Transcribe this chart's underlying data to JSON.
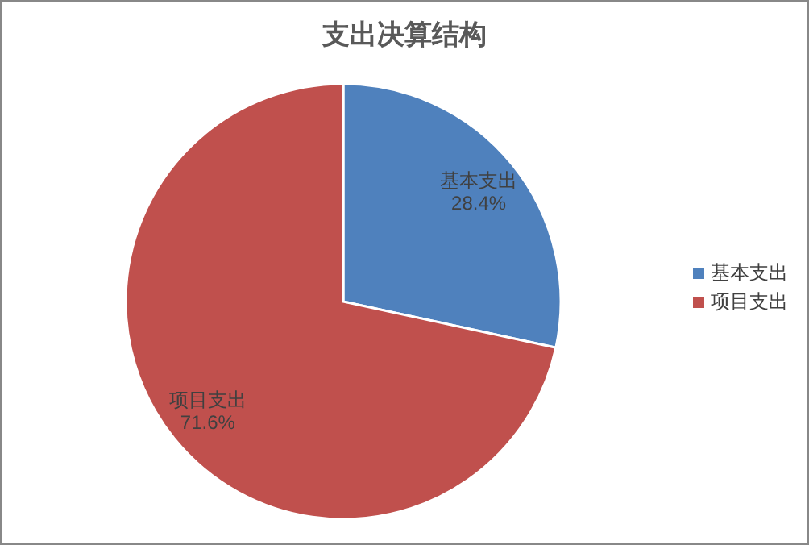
{
  "chart_data": {
    "type": "pie",
    "title": "支出决算结构",
    "categories": [
      "基本支出",
      "项目支出"
    ],
    "values": [
      28.4,
      71.6
    ],
    "colors": [
      "#4f81bd",
      "#c0504d"
    ],
    "value_labels": [
      "28.4%",
      "71.6%"
    ],
    "legend": "right"
  }
}
